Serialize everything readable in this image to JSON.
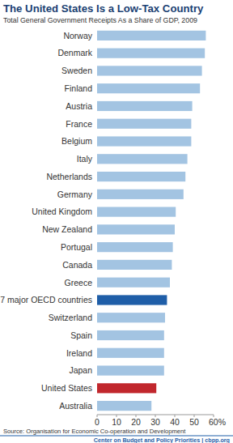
{
  "chart_data": {
    "type": "bar",
    "orientation": "horizontal",
    "title": "The United States Is a Low-Tax Country",
    "subtitle": "Total General Government Receipts As a Share of GDP, 2009",
    "source": "Source: Organisation for Economic Co-operation and Development",
    "footer": "Center on Budget and Policy Priorities | cbpp.org",
    "categories": [
      "Norway",
      "Denmark",
      "Sweden",
      "Finland",
      "Austria",
      "France",
      "Belgium",
      "Italy",
      "Netherlands",
      "Germany",
      "United Kingdom",
      "New Zealand",
      "Portugal",
      "Canada",
      "Greece",
      "7 major OECD countries",
      "Switzerland",
      "Spain",
      "Ireland",
      "Japan",
      "United States",
      "Australia"
    ],
    "values": [
      56,
      55.5,
      54,
      53,
      49,
      48.5,
      48.5,
      46.5,
      45.5,
      44.5,
      40.5,
      40,
      39,
      38.5,
      37.5,
      36,
      35,
      34.5,
      34.5,
      34.5,
      30.5,
      28
    ],
    "colors": [
      "#a3c4e2",
      "#a3c4e2",
      "#a3c4e2",
      "#a3c4e2",
      "#a3c4e2",
      "#a3c4e2",
      "#a3c4e2",
      "#a3c4e2",
      "#a3c4e2",
      "#a3c4e2",
      "#a3c4e2",
      "#a3c4e2",
      "#a3c4e2",
      "#a3c4e2",
      "#a3c4e2",
      "#1f5ea8",
      "#a3c4e2",
      "#a3c4e2",
      "#a3c4e2",
      "#a3c4e2",
      "#c1272d",
      "#a3c4e2"
    ],
    "xlim": [
      0,
      60
    ],
    "xticks": [
      0,
      10,
      20,
      30,
      40,
      50,
      {
        "value": 60,
        "label": "60%"
      }
    ],
    "grid": false
  }
}
